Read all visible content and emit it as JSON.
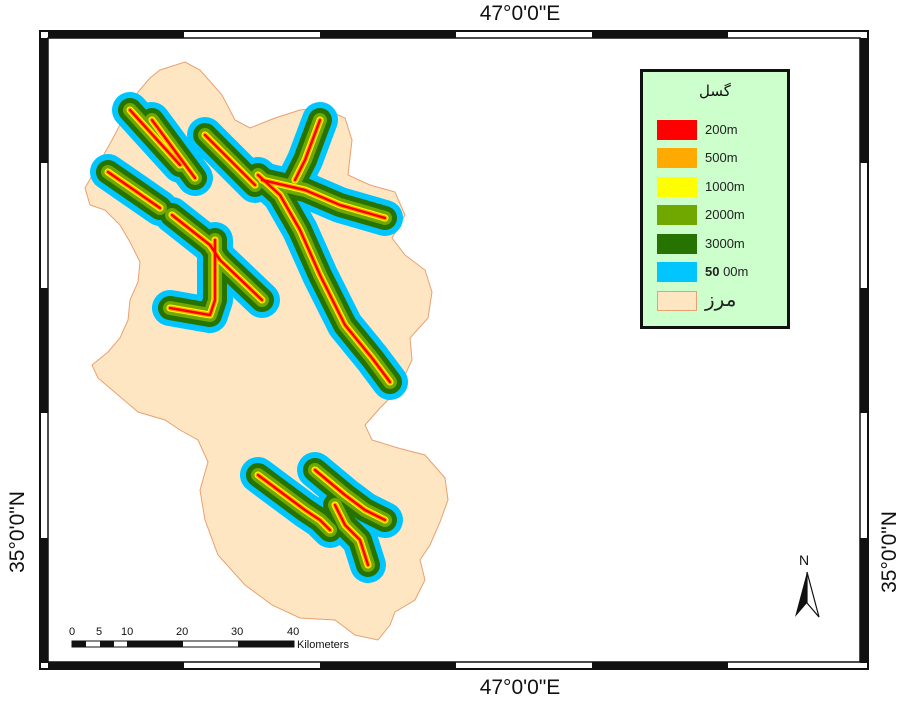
{
  "coordinates": {
    "top": "47°0'0\"E",
    "bottom": "47°0'0\"E",
    "left": "35°0'0\"N",
    "right": "35°0'0\"N"
  },
  "legend": {
    "title": "گسل",
    "items": [
      {
        "label": "200m",
        "color": "#ff0000"
      },
      {
        "label": "500m",
        "color": "#ffaa00"
      },
      {
        "label": "1000m",
        "color": "#ffff00"
      },
      {
        "label": "2000m",
        "color": "#70a800"
      },
      {
        "label": "3000m",
        "color": "#267300"
      },
      {
        "label_bold": "50",
        "label_rest": " 00m",
        "color": "#00c5ff"
      }
    ],
    "boundary": {
      "label": "مرز",
      "color": "#ffe6c3",
      "border_color": "#e8a070"
    }
  },
  "scale_bar": {
    "ticks": [
      "0",
      "5",
      "10",
      "20",
      "30",
      "40"
    ],
    "unit": "Kilometers"
  },
  "north_arrow": {
    "label": "N"
  }
}
